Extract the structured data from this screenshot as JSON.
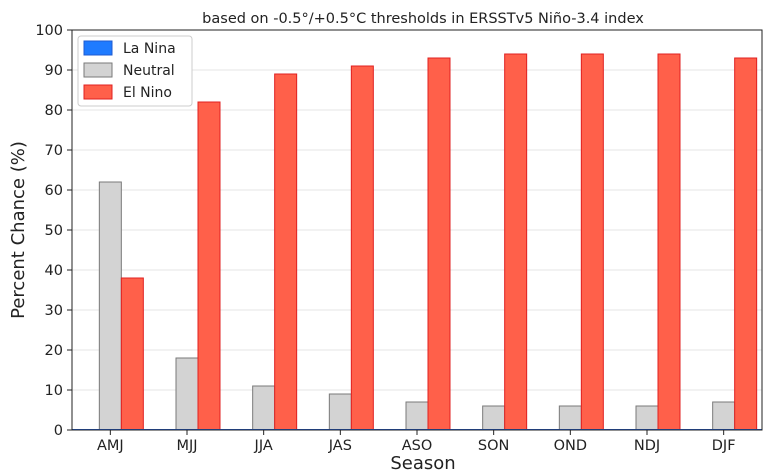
{
  "chart_data": {
    "type": "bar",
    "title": "based on -0.5°/+0.5°C thresholds in ERSSTv5 Niño-3.4 index",
    "xlabel": "Season",
    "ylabel": "Percent Chance (%)",
    "ylim": [
      0,
      100
    ],
    "yticks": [
      "0",
      "10",
      "20",
      "30",
      "40",
      "50",
      "60",
      "70",
      "80",
      "90",
      "100"
    ],
    "grid": "horizontal",
    "legend_position": "top-left",
    "categories": [
      "AMJ",
      "MJJ",
      "JJA",
      "JAS",
      "ASO",
      "SON",
      "OND",
      "NDJ",
      "DJF"
    ],
    "series": [
      {
        "name": "La Nina",
        "color": "#1f7bff",
        "edge": "#1f5bd0",
        "values": [
          0,
          0,
          0,
          0,
          0,
          0,
          0,
          0,
          0
        ]
      },
      {
        "name": "Neutral",
        "color": "#d3d3d3",
        "edge": "#7a7a7a",
        "values": [
          62,
          18,
          11,
          9,
          7,
          6,
          6,
          6,
          7
        ]
      },
      {
        "name": "El Nino",
        "color": "#ff604a",
        "edge": "#e02020",
        "values": [
          38,
          82,
          89,
          91,
          93,
          94,
          94,
          94,
          93
        ]
      }
    ]
  }
}
